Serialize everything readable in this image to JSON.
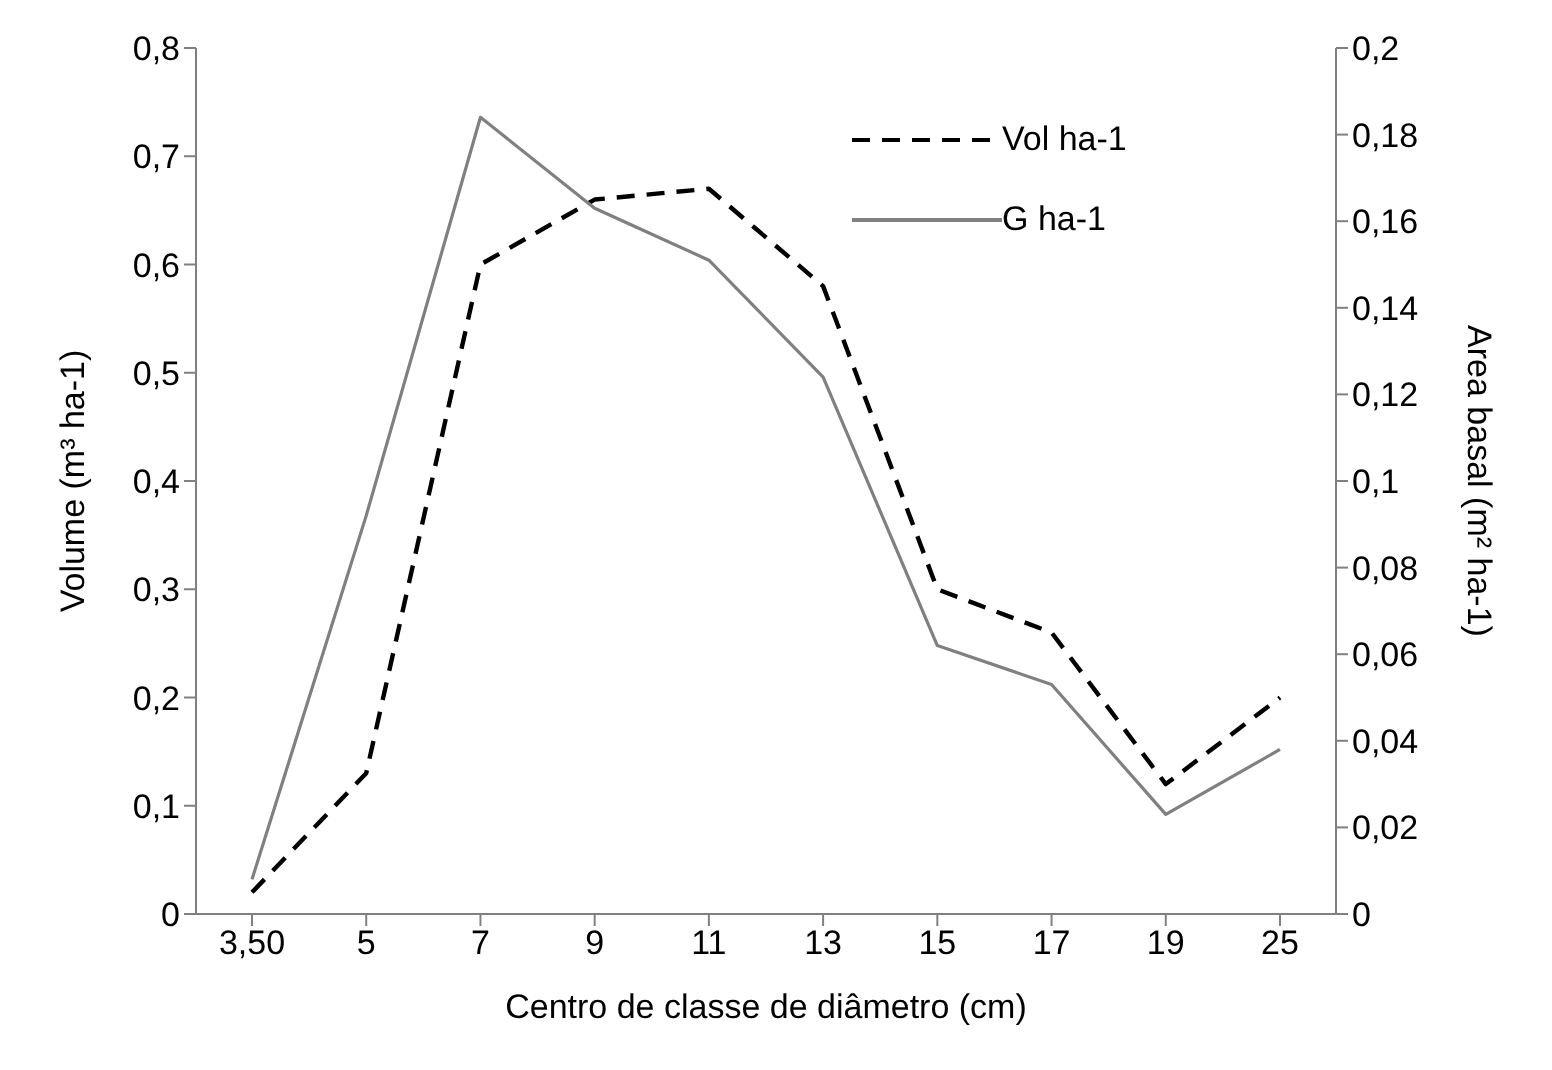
{
  "chart_data": {
    "type": "line",
    "xlabel": "Centro de classe de diâmetro (cm)",
    "ylabel": "Volume (m³ ha-1)",
    "y2label": "Area basal (m² ha-1)",
    "categories": [
      "3,50",
      "5",
      "7",
      "9",
      "11",
      "13",
      "15",
      "17",
      "19",
      "25"
    ],
    "series": [
      {
        "name": "Vol ha-1",
        "color": "#000000",
        "line_style": "dashed",
        "values": [
          0.02,
          0.13,
          0.6,
          0.66,
          0.67,
          0.58,
          0.3,
          0.26,
          0.12,
          0.2
        ]
      },
      {
        "name": "G ha-1",
        "color": "#808080",
        "line_style": "solid",
        "axis": "y2",
        "values": [
          0.008,
          0.092,
          0.184,
          0.163,
          0.151,
          0.124,
          0.062,
          0.053,
          0.023,
          0.038
        ]
      }
    ],
    "ylim": [
      0,
      0.8
    ],
    "yticks": [
      0,
      {
        "value": 0.1,
        "label": "0,1"
      },
      {
        "value": 0.2,
        "label": "0,2"
      },
      {
        "value": 0.3,
        "label": "0,3"
      },
      {
        "value": 0.4,
        "label": "0,4"
      },
      {
        "value": 0.5,
        "label": "0,5"
      },
      {
        "value": 0.6,
        "label": "0,6"
      },
      {
        "value": 0.7,
        "label": "0,7"
      },
      {
        "value": 0.8,
        "label": "0,8"
      }
    ],
    "y2lim": [
      0,
      0.2
    ],
    "y2ticks": [
      0,
      {
        "value": 0.02,
        "label": "0,02"
      },
      {
        "value": 0.04,
        "label": "0,04"
      },
      {
        "value": 0.06,
        "label": "0,06"
      },
      {
        "value": 0.08,
        "label": "0,08"
      },
      {
        "value": 0.1,
        "label": "0,1"
      },
      {
        "value": 0.12,
        "label": "0,12"
      },
      {
        "value": 0.14,
        "label": "0,14"
      },
      {
        "value": 0.16,
        "label": "0,16"
      },
      {
        "value": 0.18,
        "label": "0,18"
      },
      {
        "value": 0.2,
        "label": "0,2"
      }
    ],
    "grid": false,
    "legend": "top right",
    "marker": "none"
  }
}
